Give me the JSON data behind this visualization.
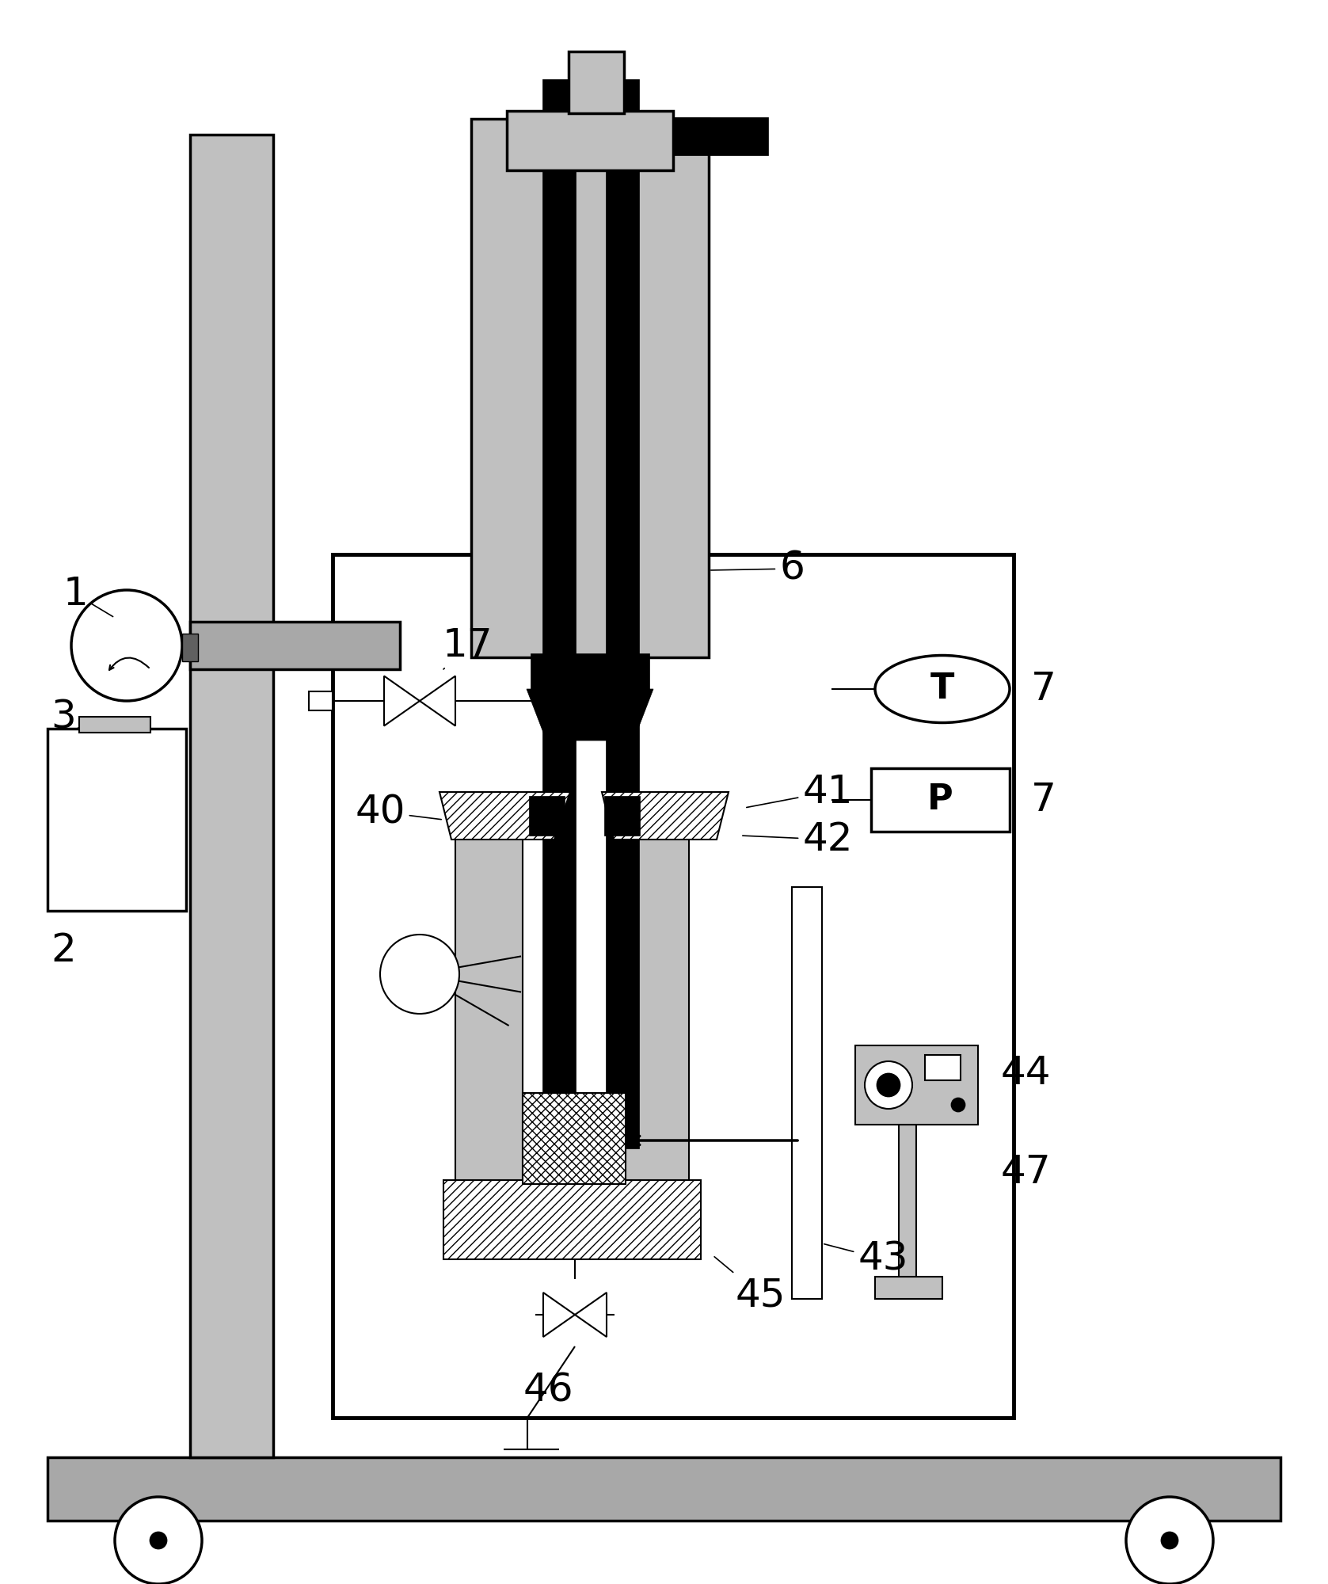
{
  "bg_color": "#ffffff",
  "lc": "#000000",
  "gray_light": "#c0c0c0",
  "gray_medium": "#a8a8a8",
  "gray_dark": "#606060",
  "gray_fill": "#b0b0b0"
}
